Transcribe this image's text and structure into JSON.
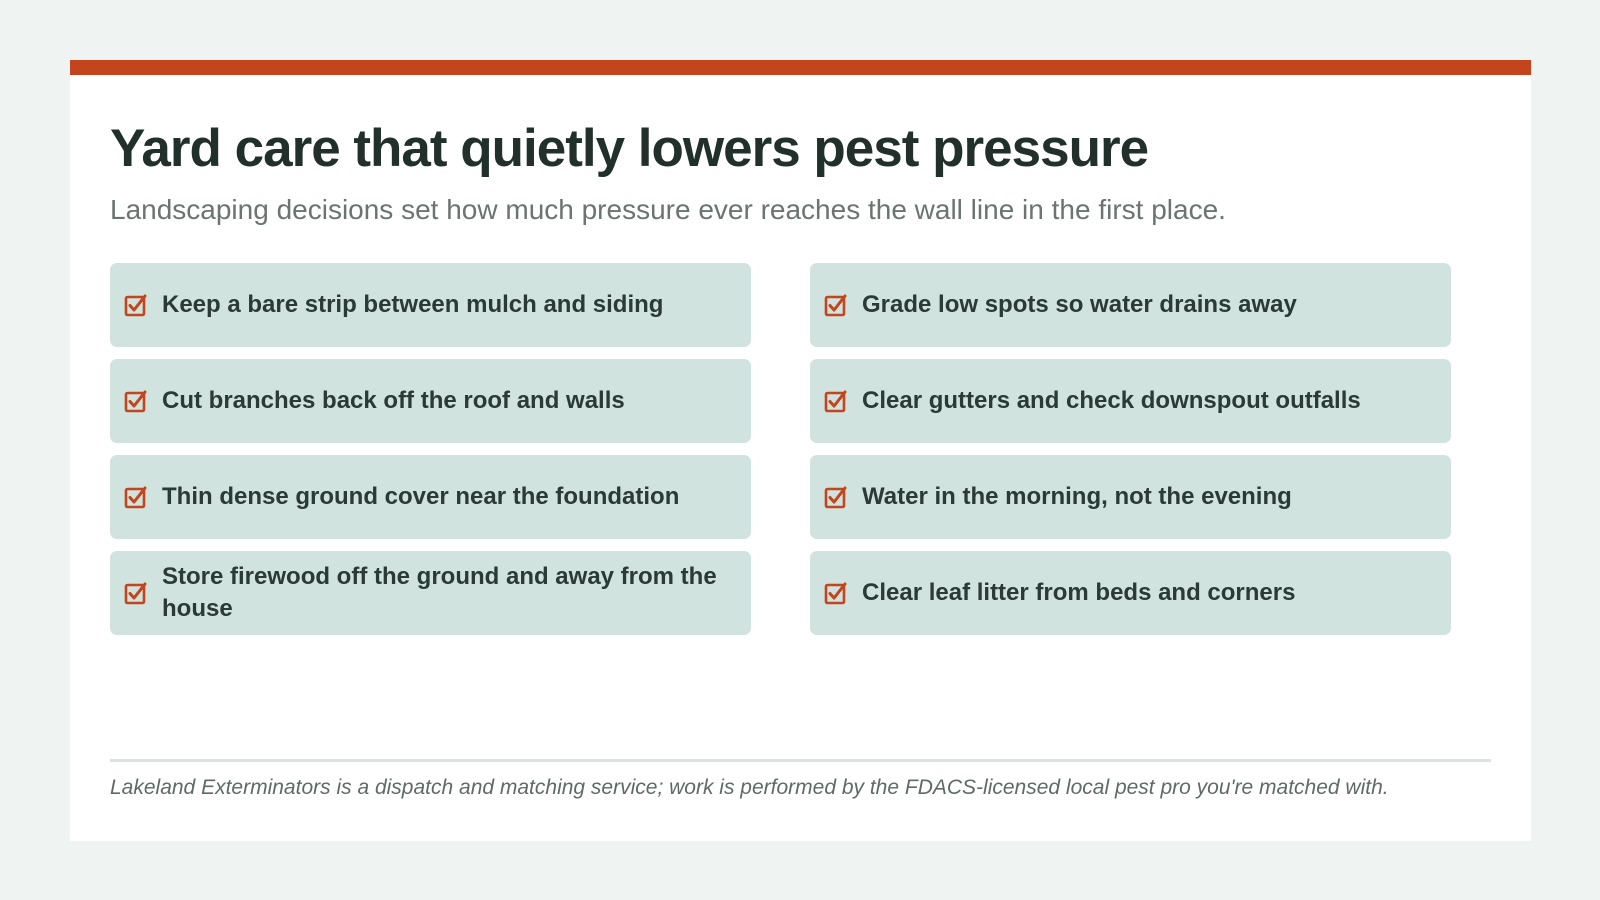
{
  "colors": {
    "accent": "#c4441d",
    "item_background": "#d0e3de",
    "title": "#22302c",
    "subtitle": "#6a7470",
    "check": "#c4441d"
  },
  "header": {
    "title": "Yard care that quietly lowers pest pressure",
    "subtitle": "Landscaping decisions set how much pressure ever reaches the wall line in the first place."
  },
  "checklist": {
    "icon": "checked-checkbox-icon",
    "items": [
      {
        "label": "Keep a bare strip between mulch and siding"
      },
      {
        "label": "Grade low spots so water drains away"
      },
      {
        "label": "Cut branches back off the roof and walls"
      },
      {
        "label": "Clear gutters and check downspout outfalls"
      },
      {
        "label": "Thin dense ground cover near the foundation"
      },
      {
        "label": "Water in the morning, not the evening"
      },
      {
        "label": "Store firewood off the ground and away from the house"
      },
      {
        "label": "Clear leaf litter from beds and corners"
      }
    ]
  },
  "footer": {
    "disclaimer": "Lakeland Exterminators is a dispatch and matching service; work is performed by the FDACS-licensed local pest pro you're matched with."
  }
}
